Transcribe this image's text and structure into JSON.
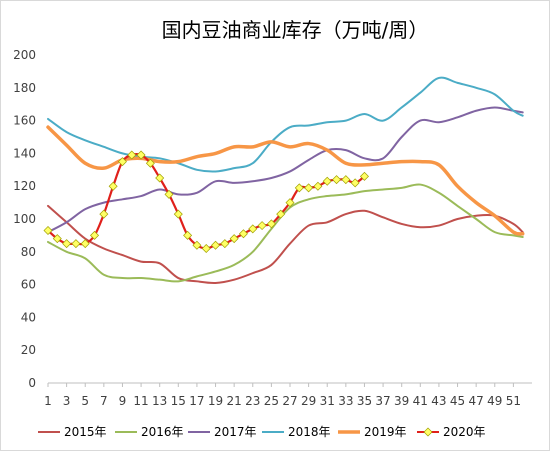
{
  "chart_data": {
    "type": "line",
    "title": "国内豆油商业库存（万吨/周）",
    "xlabel": "",
    "ylabel": "",
    "ylim": [
      0,
      200
    ],
    "y_ticks": [
      0,
      20,
      40,
      60,
      80,
      100,
      120,
      140,
      160,
      180,
      200
    ],
    "x_ticks": [
      1,
      3,
      5,
      7,
      9,
      11,
      13,
      15,
      17,
      19,
      21,
      23,
      25,
      27,
      29,
      31,
      33,
      35,
      37,
      39,
      41,
      43,
      45,
      47,
      49,
      51
    ],
    "xlim": [
      1,
      53
    ],
    "grid": "none",
    "legend": "bottom",
    "series": [
      {
        "name": "2015年",
        "color": "#C0504D",
        "x": [
          1,
          3,
          5,
          7,
          9,
          11,
          13,
          15,
          17,
          19,
          21,
          23,
          25,
          27,
          29,
          31,
          33,
          35,
          37,
          39,
          41,
          43,
          45,
          47,
          49,
          51,
          52
        ],
        "values": [
          108,
          98,
          88,
          82,
          78,
          74,
          73,
          64,
          62,
          61,
          63,
          67,
          72,
          85,
          96,
          98,
          103,
          105,
          101,
          97,
          95,
          96,
          100,
          102,
          102,
          97,
          92
        ]
      },
      {
        "name": "2016年",
        "color": "#9BBB59",
        "x": [
          1,
          3,
          5,
          7,
          9,
          11,
          13,
          15,
          17,
          19,
          21,
          23,
          25,
          27,
          29,
          31,
          33,
          35,
          37,
          39,
          41,
          43,
          45,
          47,
          49,
          51,
          52
        ],
        "values": [
          86,
          80,
          76,
          66,
          64,
          64,
          63,
          62,
          65,
          68,
          72,
          80,
          94,
          107,
          112,
          114,
          115,
          117,
          118,
          119,
          121,
          116,
          108,
          100,
          92,
          90,
          89
        ]
      },
      {
        "name": "2017年",
        "color": "#8064A2",
        "x": [
          1,
          3,
          5,
          7,
          9,
          11,
          13,
          15,
          17,
          19,
          21,
          23,
          25,
          27,
          29,
          31,
          33,
          35,
          37,
          39,
          41,
          43,
          45,
          47,
          49,
          51,
          52
        ],
        "values": [
          92,
          98,
          106,
          110,
          112,
          114,
          118,
          115,
          116,
          123,
          122,
          123,
          125,
          129,
          136,
          142,
          142,
          137,
          137,
          150,
          160,
          159,
          162,
          166,
          168,
          166,
          165
        ]
      },
      {
        "name": "2018年",
        "color": "#4BACC6",
        "x": [
          1,
          3,
          5,
          7,
          9,
          11,
          13,
          15,
          17,
          19,
          21,
          23,
          25,
          27,
          29,
          31,
          33,
          35,
          37,
          39,
          41,
          43,
          45,
          47,
          49,
          51,
          52
        ],
        "values": [
          161,
          153,
          148,
          144,
          140,
          138,
          137,
          134,
          130,
          129,
          131,
          134,
          147,
          156,
          157,
          159,
          160,
          164,
          160,
          168,
          177,
          186,
          183,
          180,
          176,
          166,
          163
        ]
      },
      {
        "name": "2019年",
        "color": "#F79646",
        "x": [
          1,
          3,
          5,
          7,
          9,
          11,
          13,
          15,
          17,
          19,
          21,
          23,
          25,
          27,
          29,
          31,
          33,
          35,
          37,
          39,
          41,
          43,
          45,
          47,
          49,
          51,
          52
        ],
        "values": [
          156,
          145,
          134,
          131,
          136,
          137,
          135,
          135,
          138,
          140,
          144,
          144,
          147,
          144,
          146,
          142,
          134,
          133,
          134,
          135,
          135,
          133,
          120,
          110,
          102,
          92,
          91
        ]
      },
      {
        "name": "2020年",
        "color": "#E0201B",
        "marker_color": "#FFFF66",
        "x": [
          1,
          2,
          3,
          4,
          5,
          6,
          7,
          8,
          9,
          10,
          11,
          12,
          13,
          14,
          15,
          16,
          17,
          18,
          19,
          20,
          21,
          22,
          23,
          24,
          25,
          26,
          27,
          28,
          29,
          30,
          31,
          32,
          33,
          34,
          35
        ],
        "values": [
          93,
          88,
          85,
          85,
          85,
          90,
          103,
          120,
          135,
          139,
          139,
          134,
          125,
          115,
          103,
          90,
          84,
          82,
          84,
          85,
          88,
          91,
          94,
          96,
          97,
          103,
          110,
          119,
          119,
          120,
          123,
          124,
          124,
          122,
          126
        ]
      }
    ]
  }
}
